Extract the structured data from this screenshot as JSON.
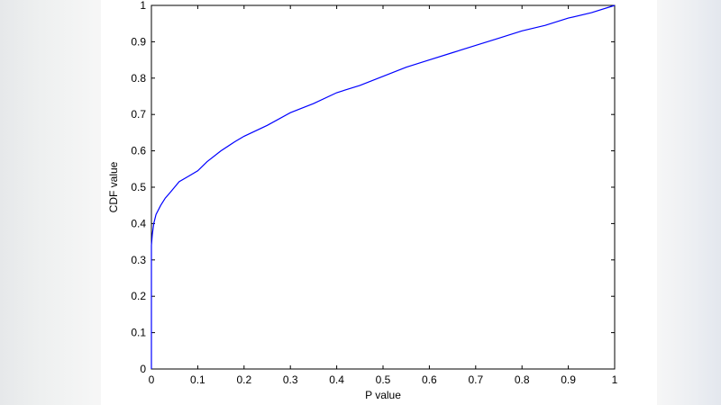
{
  "chart_data": {
    "type": "line",
    "title": "",
    "xlabel": "P value",
    "ylabel": "CDF value",
    "xlim": [
      0,
      1
    ],
    "ylim": [
      0,
      1
    ],
    "xticks": [
      "0",
      "0.1",
      "0.2",
      "0.3",
      "0.4",
      "0.5",
      "0.6",
      "0.7",
      "0.8",
      "0.9",
      "1"
    ],
    "yticks": [
      "0",
      "0.1",
      "0.2",
      "0.3",
      "0.4",
      "0.5",
      "0.6",
      "0.7",
      "0.8",
      "0.9",
      "1"
    ],
    "grid": false,
    "line_color": "#0000ff",
    "series": [
      {
        "x": [
          0,
          0,
          0.002,
          0.005,
          0.01,
          0.02,
          0.03,
          0.04,
          0.05,
          0.06,
          0.08,
          0.1,
          0.12,
          0.15,
          0.18,
          0.2,
          0.25,
          0.3,
          0.35,
          0.4,
          0.45,
          0.5,
          0.55,
          0.6,
          0.65,
          0.7,
          0.75,
          0.8,
          0.85,
          0.9,
          0.95,
          1.0
        ],
        "y": [
          0,
          0.34,
          0.37,
          0.4,
          0.425,
          0.45,
          0.47,
          0.485,
          0.5,
          0.515,
          0.53,
          0.545,
          0.57,
          0.6,
          0.625,
          0.64,
          0.67,
          0.705,
          0.73,
          0.76,
          0.78,
          0.805,
          0.83,
          0.85,
          0.87,
          0.89,
          0.91,
          0.93,
          0.945,
          0.965,
          0.98,
          1.0
        ]
      }
    ]
  }
}
